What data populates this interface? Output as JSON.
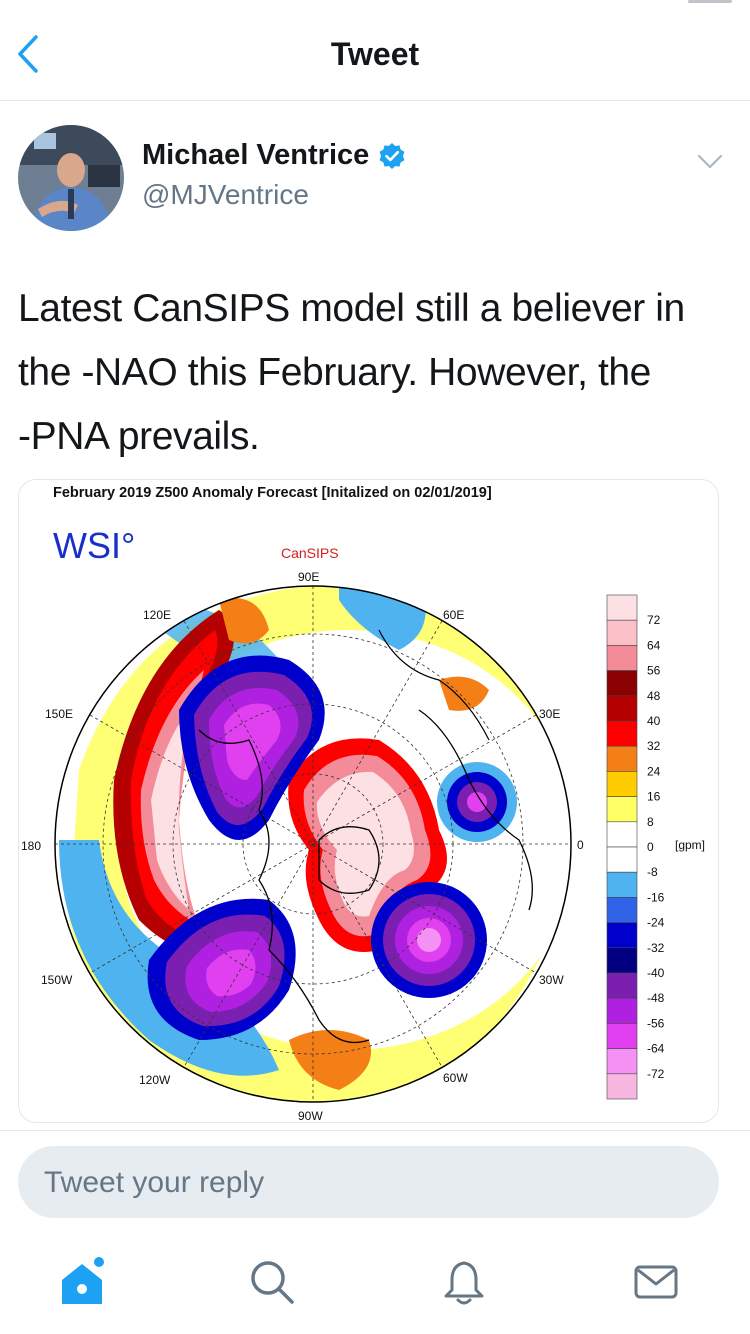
{
  "nav": {
    "title": "Tweet"
  },
  "author": {
    "name": "Michael Ventrice",
    "handle": "@MJVentrice",
    "verified": true
  },
  "tweet": {
    "lines": [
      "Latest CanSIPS model still a believer in",
      "the -NAO this February. However, the",
      "-PNA prevails."
    ]
  },
  "map": {
    "title": "February 2019 Z500 Anomaly Forecast [Initalized on 02/01/2019]",
    "logo": "WSI°",
    "model": "CanSIPS",
    "longitudes": [
      "90E",
      "60E",
      "30E",
      "0",
      "30W",
      "60W",
      "90W",
      "120W",
      "150W",
      "180",
      "150E",
      "120E"
    ],
    "legend_values": [
      "72",
      "64",
      "56",
      "48",
      "40",
      "32",
      "24",
      "16",
      "8",
      "0",
      "-8",
      "-16",
      "-24",
      "-32",
      "-40",
      "-48",
      "-56",
      "-64",
      "-72"
    ],
    "legend_colors": [
      "#fde0e3",
      "#fbc1c8",
      "#f48b99",
      "#8b0000",
      "#b40000",
      "#ff0000",
      "#f57f17",
      "#ffcc00",
      "#ffff66",
      "#ffffff",
      "#ffffff",
      "#4fb3f0",
      "#2f64e8",
      "#0000cc",
      "#000080",
      "#7a1fb0",
      "#b020e0",
      "#e040f0",
      "#f590f5",
      "#f8b7e0"
    ],
    "unit": "[gpm]"
  },
  "reply": {
    "placeholder": "Tweet your reply"
  },
  "colors": {
    "accent": "#1da1f2",
    "icon_gray": "#657786",
    "divider": "#e1e8ed"
  }
}
